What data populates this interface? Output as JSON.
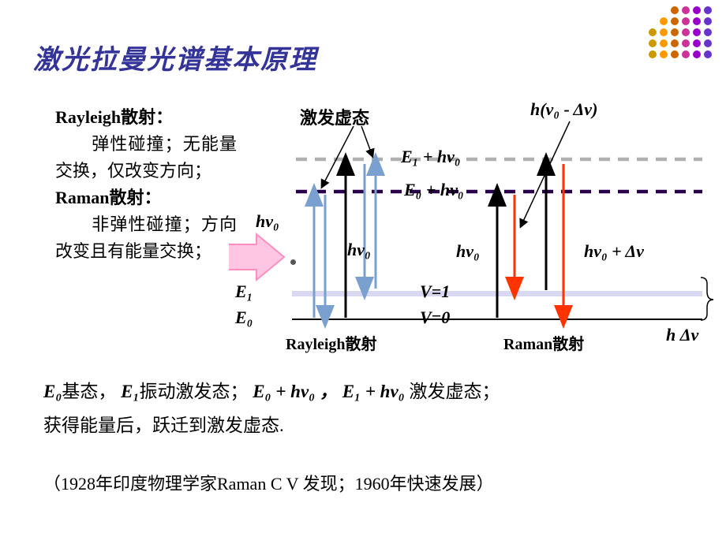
{
  "decor": {
    "dot_colors": [
      "#cc9900",
      "#ff9900",
      "#cc6600",
      "#cc3399",
      "#9900cc",
      "#6633cc"
    ],
    "dot_counts": [
      3,
      4,
      5,
      5,
      5,
      5
    ]
  },
  "title": "激光拉曼光谱基本原理",
  "left_panel": {
    "rayleigh_head": "Rayleigh散射：",
    "rayleigh_body": "　　弹性碰撞；无能量交换，仅改变方向；",
    "raman_head": "Raman散射：",
    "raman_body": "　　非弹性碰撞；方向改变且有能量交换；"
  },
  "diagram": {
    "virtual_label": "激发虚态",
    "stokes_label": "h(ν₀ - Δν)",
    "level_E1_hv0": "E₁ + hν₀",
    "level_E0_hv0": "E₀ + hν₀",
    "hv0_left": "hν₀",
    "hv0_mid": "hν₀",
    "hv0_mid2": "hν₀",
    "hv0_plus": "hν₀ + Δν",
    "E1": "E₁",
    "E0": "E₀",
    "V1": "V=1",
    "V0": "V=0",
    "hDv": "h Δν",
    "rayleigh_caption": "Rayleigh散射",
    "raman_caption": "Raman散射",
    "colors": {
      "dash_top": "#b0b0b0",
      "dash_mid": "#4b0082",
      "level": "#d8d8f0",
      "arrow_black": "#000000",
      "arrow_blue": "#7aa0d0",
      "arrow_red": "#ff3300",
      "pink_arrow": "#ffb0d0",
      "pink_arrow_border": "#ff66aa",
      "pointer": "#000000"
    }
  },
  "bottom": {
    "line1_a": "E₀",
    "line1_b": "基态，",
    "line1_c": "E₁",
    "line1_d": "振动激发态；",
    "line1_e": "E₀ + hν₀ ，",
    "line1_f": "E₁ + hν₀",
    "line1_g": "激发虚态；",
    "line2": "获得能量后，跃迁到激发虚态.",
    "note": "（1928年印度物理学家Raman C V 发现；1960年快速发展）"
  }
}
